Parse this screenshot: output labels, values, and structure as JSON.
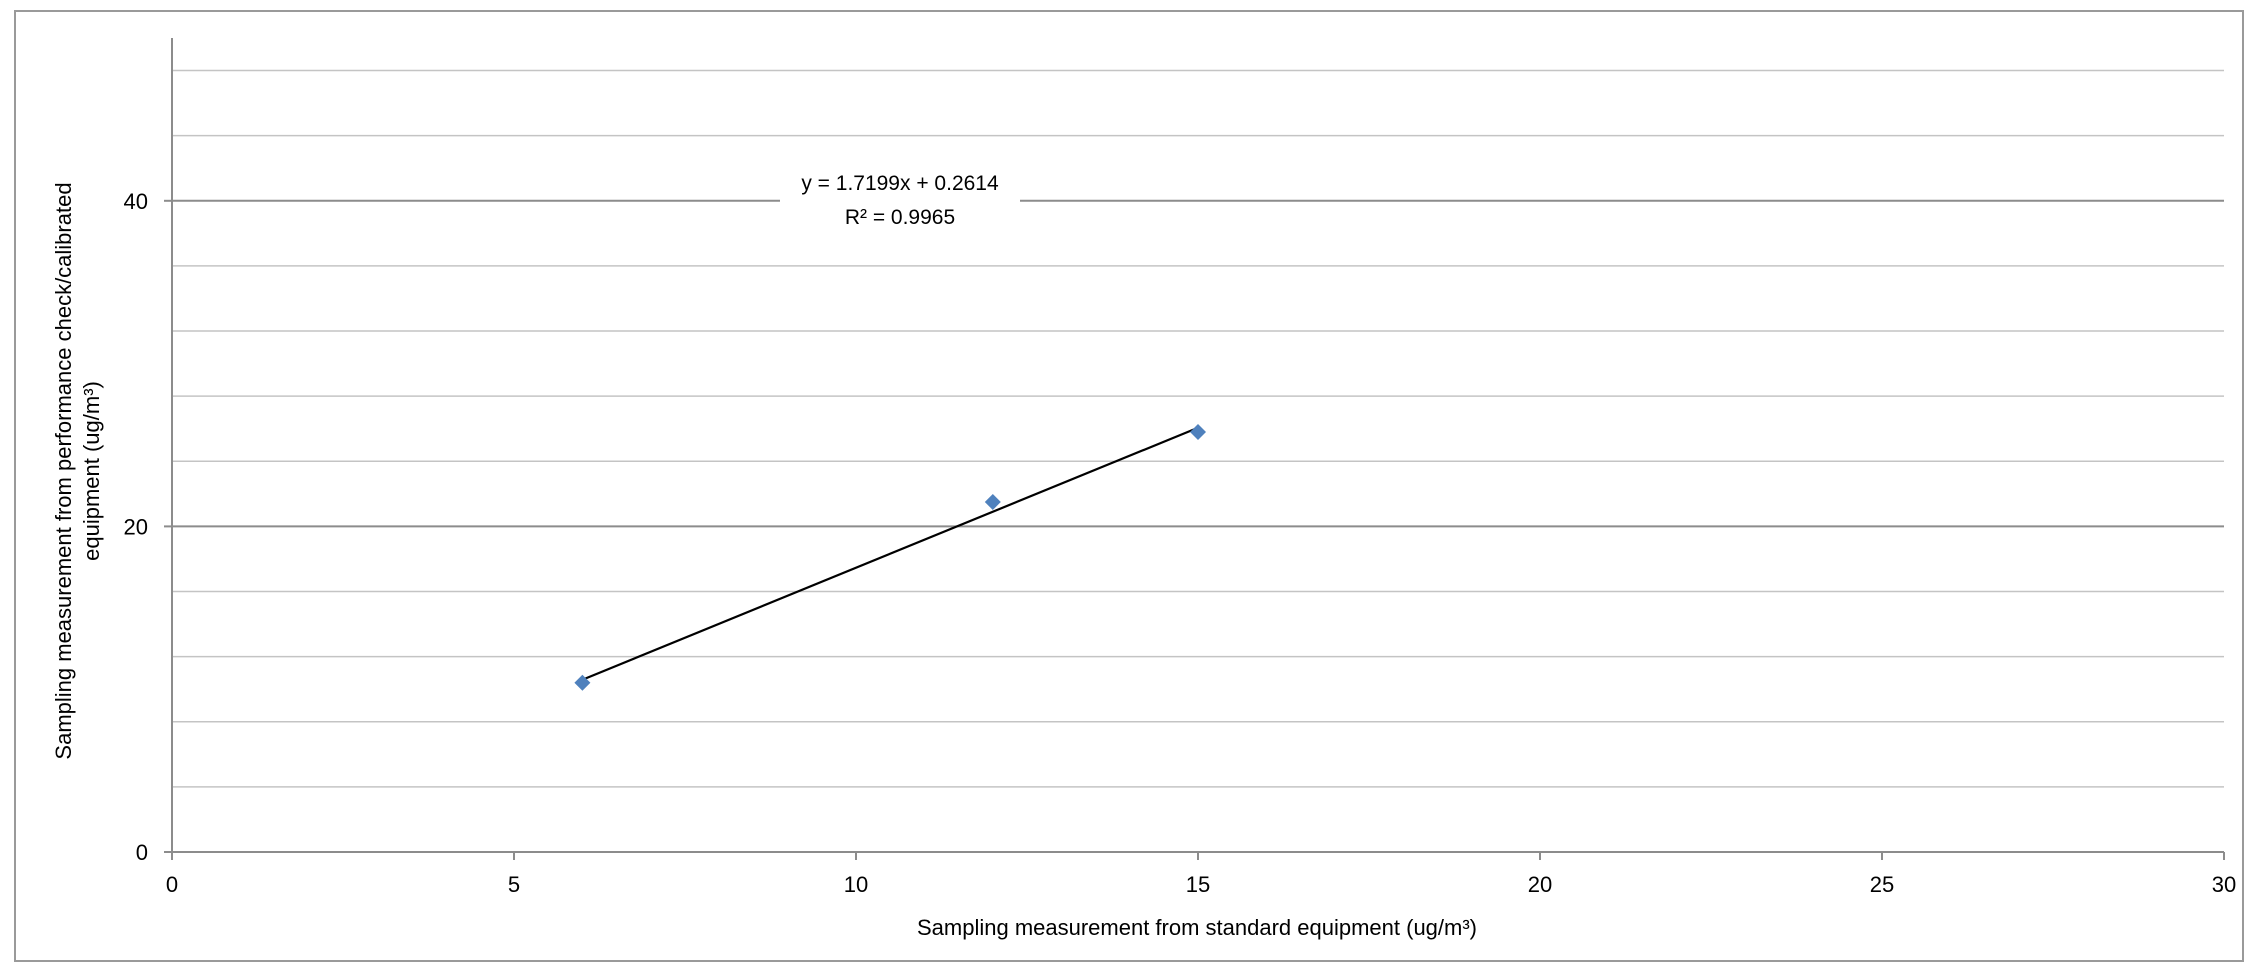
{
  "chart_data": {
    "type": "scatter",
    "xlabel": "Sampling measurement from standard equipment  (ug/m³)",
    "ylabel_line1": "Sampling measurement from performance check/calibrated",
    "ylabel_line2": "equipment (ug/m³)",
    "xlim": [
      0,
      30
    ],
    "ylim": [
      0,
      50
    ],
    "x_ticks": [
      0,
      5,
      10,
      15,
      20,
      25,
      30
    ],
    "y_ticks": [
      0,
      20,
      40
    ],
    "y_minor_gridlines": [
      4,
      8,
      12,
      16,
      24,
      28,
      32,
      36,
      44,
      48
    ],
    "y_major_gridlines": [
      20,
      40
    ],
    "grid": true,
    "series": [
      {
        "x": [
          6,
          12,
          15
        ],
        "y": [
          10.4,
          21.5,
          25.8
        ],
        "color": "#4f81bd",
        "marker": "diamond"
      }
    ],
    "trendline": {
      "slope": 1.7199,
      "intercept": 0.2614,
      "x_range": [
        6,
        15
      ],
      "color": "#000000",
      "equation": "y = 1.7199x + 0.2614",
      "r_squared": "R² = 0.9965"
    }
  }
}
